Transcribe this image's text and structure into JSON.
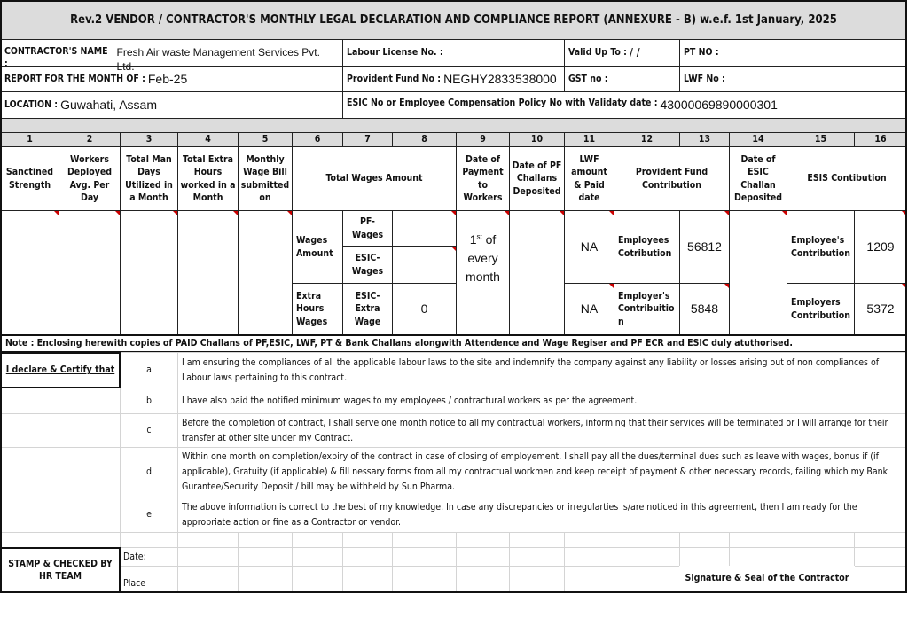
{
  "title": "Rev.2 VENDOR / CONTRACTOR'S MONTHLY LEGAL DECLARATION AND COMPLIANCE REPORT  (ANNEXURE - B) w.e.f. 1st January, 2025",
  "info": {
    "contractor_label": "CONTRACTOR'S NAME :",
    "contractor_value": "Fresh Air waste Management Services Pvt. Ltd.",
    "labour_license_label": "Labour License No. :",
    "valid_up_to_label": "Valid Up To :",
    "valid_up_to_value": "/     /",
    "pt_label": "PT NO :",
    "month_label": "REPORT FOR THE MONTH OF :",
    "month_value": "Feb-25",
    "pf_label": "Provident Fund No :",
    "pf_value": "NEGHY2833538000",
    "gst_label": "GST no :",
    "lwf_label": "LWF No :",
    "location_label": "LOCATION :",
    "location_value": "Guwahati, Assam",
    "esic_label": "ESIC No or Employee Compensation Policy No with Validaty date :",
    "esic_value": "43000069890000301"
  },
  "column_numbers": [
    "1",
    "2",
    "3",
    "4",
    "5",
    "6",
    "7",
    "8",
    "9",
    "10",
    "11",
    "12",
    "13",
    "14",
    "15",
    "16"
  ],
  "headers": {
    "sanctioned": "Sanctined Strength",
    "workers": "Workers Deployed Avg. Per Day",
    "man_days": "Total Man Days Utilized in a Month",
    "extra_hours": "Total Extra Hours worked in a Month",
    "wage_bill": "Monthly Wage Bill submitted on",
    "total_wages": "Total Wages Amount",
    "payment_date": "Date of Payment to Workers",
    "pf_challan": "Date of PF Challans Deposited",
    "lwf": "LWF amount & Paid date",
    "pf_contribution": "Provident Fund Contribution",
    "esic_challan": "Date of ESIC Challan Deposited",
    "esis_contribution": "ESIS Contibution"
  },
  "data": {
    "wages_amount": "Wages Amount",
    "pf_wages": "PF-Wages",
    "esic_wages": "ESIC-Wages",
    "extra_hours_wages": "Extra Hours Wages",
    "esic_extra_wage": "ESIC-Extra Wage",
    "esic_extra_wage_value": "0",
    "payment_day": "1",
    "payment_suffix": "st",
    "payment_rest": " of every month",
    "lwf_1": "NA",
    "lwf_2": "NA",
    "pf_employees_label": "Employees Cotribution",
    "pf_employees_value": "56812",
    "pf_employer_label": "Employer's Contribuitio n",
    "pf_employer_value": "5848",
    "esis_employee_label": "Employee's Contribution",
    "esis_employee_value": "1209",
    "esis_employer_label": "Employers Contribution",
    "esis_employer_value": "5372"
  },
  "note": "Note : Enclosing herewith copies of PAID Challans of  PF,ESIC, LWF, PT & Bank Challans  alongwith Attendence and Wage Regiser and PF ECR and ESIC duly atuthorised.",
  "declaration": {
    "heading": "I declare & Certify that",
    "items": [
      {
        "letter": "a",
        "text": "I am ensuring the compliances of all the applicable labour laws to the site and indemnify the company against any liability or losses arising out of non compliances of Labour laws pertaining to this contract."
      },
      {
        "letter": "b",
        "text": "I have also paid the notified minimum wages to my employees / contractural workers as per the agreement."
      },
      {
        "letter": "c",
        "text": "Before the completion of contract, I shall serve one month notice to all my contractual workers, informing that their services will be terminated or I will arrange for their transfer at other site under my Contract."
      },
      {
        "letter": "d",
        "text": "Within one month on completion/expiry of the contract in case of closing of employement, I shall pay all the dues/terminal dues such as leave with wages, bonus if (if applicable), Gratuity (if applicable) & fill nessary forms from all my contractual workmen and keep receipt of payment & other necessary records, failing which my Bank Gurantee/Security Deposit / bill may be withheld by Sun Pharma."
      },
      {
        "letter": "e",
        "text": "The above information is correct to the best of my knowledge. In case any discrepancies or irregularties is/are noticed in this agreement, then I am ready for the appropriate action or fine as a Contractor or vendor."
      }
    ]
  },
  "footer": {
    "stamp": "STAMP & CHECKED BY HR TEAM",
    "date_label": "Date:",
    "place_label": "Place",
    "signature": "Signature & Seal of the Contractor"
  }
}
